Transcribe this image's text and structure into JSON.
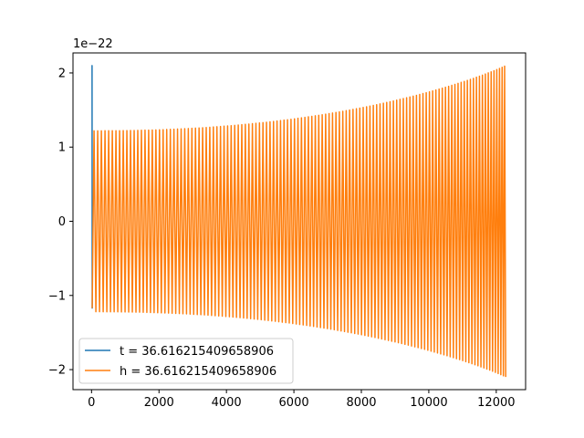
{
  "chart_data": {
    "type": "line",
    "title": "",
    "xlabel": "",
    "ylabel": "",
    "y_offset_label": "1e−22",
    "xlim": [
      -550,
      12870
    ],
    "ylim": [
      -2.27,
      2.27
    ],
    "x_ticks": [
      0,
      2000,
      4000,
      6000,
      8000,
      10000,
      12000
    ],
    "x_tick_labels": [
      "0",
      "2000",
      "4000",
      "6000",
      "8000",
      "10000",
      "12000"
    ],
    "y_ticks": [
      -2,
      -1,
      0,
      1,
      2
    ],
    "y_tick_labels": [
      "−2",
      "−1",
      "0",
      "1",
      "2"
    ],
    "grid": false,
    "legend_position": "lower-left",
    "series": [
      {
        "name": "t = 36.616215409658906",
        "color": "#1f77b4",
        "points": [
          [
            0,
            2.1
          ],
          [
            15,
            2.1
          ],
          [
            20,
            -1.17
          ],
          [
            30,
            0.2
          ]
        ]
      },
      {
        "name": "h = 36.616215409658906",
        "color": "#ff7f0e",
        "waveform": {
          "x_start": 20,
          "x_end": 12280,
          "initial_amplitude": 1.22,
          "final_amplitude": 2.1,
          "cycles": 122,
          "start_value": -1.17
        }
      }
    ]
  }
}
